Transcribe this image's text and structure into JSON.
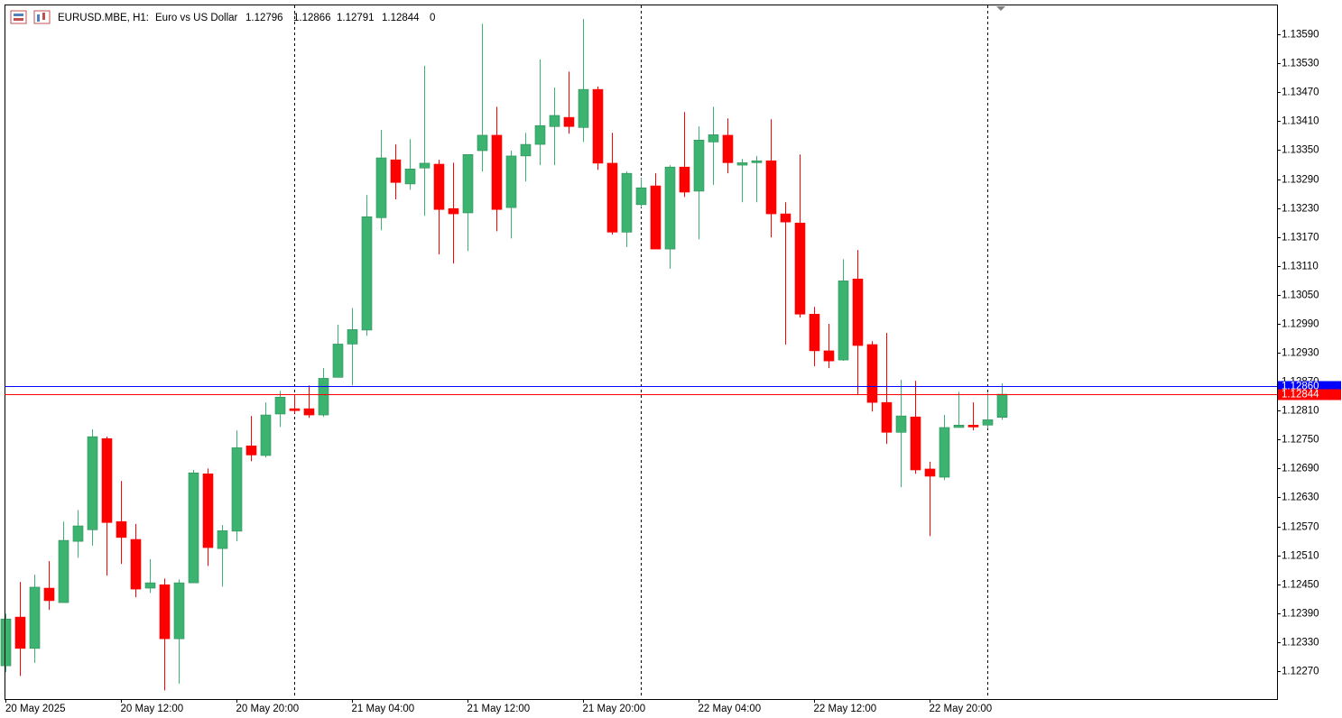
{
  "chart_data": {
    "type": "candlestick",
    "title": "EURUSD.MBE, H1:",
    "subtitle": "Euro vs US Dollar",
    "quote": [
      1.12796,
      1.12866,
      1.12791,
      1.12844
    ],
    "volume": 0,
    "categories": [
      "20 May 2025",
      null,
      null,
      null,
      null,
      null,
      null,
      null,
      "20 May 12:00",
      null,
      null,
      null,
      null,
      null,
      null,
      null,
      "20 May 20:00",
      null,
      null,
      null,
      null,
      null,
      null,
      null,
      "21 May 04:00",
      null,
      null,
      null,
      null,
      null,
      null,
      null,
      "21 May 12:00",
      null,
      null,
      null,
      null,
      null,
      null,
      null,
      "21 May 20:00",
      null,
      null,
      null,
      null,
      null,
      null,
      null,
      "22 May 04:00",
      null,
      null,
      null,
      null,
      null,
      null,
      null,
      "22 May 12:00",
      null,
      null,
      null,
      null,
      null,
      null,
      null,
      "22 May 20:00",
      null,
      null,
      null,
      null,
      null
    ],
    "open": [
      1.12281,
      1.12382,
      1.12317,
      1.12442,
      1.12412,
      1.12539,
      1.12563,
      1.12752,
      1.1258,
      1.12543,
      1.12442,
      1.12449,
      1.12337,
      1.12453,
      1.12679,
      1.12524,
      1.1256,
      1.12737,
      1.12717,
      1.12803,
      1.12814,
      1.12814,
      1.12801,
      1.12879,
      1.12948,
      1.12977,
      1.1321,
      1.1333,
      1.1328,
      1.13313,
      1.13321,
      1.13229,
      1.1322,
      1.13349,
      1.13381,
      1.13231,
      1.13338,
      1.13362,
      1.13399,
      1.13418,
      1.13397,
      1.13476,
      1.13323,
      1.1318,
      1.13237,
      1.13276,
      1.13145,
      1.13315,
      1.13265,
      1.13367,
      1.13381,
      1.13319,
      1.13324,
      1.13328,
      1.13218,
      1.13199,
      1.1301,
      1.12934,
      1.12915,
      1.13083,
      1.12947,
      1.12827,
      1.12765,
      1.12797,
      1.12689,
      1.12672,
      1.12775,
      1.1278,
      1.1278,
      1.12796
    ],
    "high": [
      1.12389,
      1.12455,
      1.1247,
      1.12498,
      1.1258,
      1.12604,
      1.12771,
      1.12756,
      1.12664,
      1.12575,
      1.12502,
      1.12462,
      1.1246,
      1.12687,
      1.1269,
      1.12573,
      1.12769,
      1.12799,
      1.12827,
      1.12851,
      1.12844,
      1.12862,
      1.12898,
      1.12988,
      1.13023,
      1.13257,
      1.13392,
      1.13362,
      1.13373,
      1.13525,
      1.1333,
      1.13324,
      1.13341,
      1.13612,
      1.1344,
      1.13349,
      1.13386,
      1.13538,
      1.1348,
      1.13513,
      1.13622,
      1.13482,
      1.13386,
      1.13306,
      1.13293,
      1.13302,
      1.13319,
      1.13429,
      1.13399,
      1.1344,
      1.13416,
      1.13332,
      1.13338,
      1.13414,
      1.13242,
      1.13341,
      1.13025,
      1.1299,
      1.13124,
      1.13143,
      1.12954,
      1.12971,
      1.12874,
      1.12872,
      1.12704,
      1.12801,
      1.12849,
      1.12827,
      1.12846,
      1.12866
    ],
    "low": [
      1.12268,
      1.1226,
      1.12287,
      1.12397,
      1.12412,
      1.12505,
      1.1253,
      1.12468,
      1.12492,
      1.12423,
      1.12432,
      1.1223,
      1.12244,
      1.12453,
      1.12488,
      1.12445,
      1.12539,
      1.12705,
      1.12713,
      1.12776,
      1.12804,
      1.12795,
      1.12797,
      1.12879,
      1.12862,
      1.12965,
      1.13184,
      1.13248,
      1.13268,
      1.13214,
      1.13134,
      1.13115,
      1.13141,
      1.13306,
      1.13182,
      1.13167,
      1.13285,
      1.13319,
      1.13319,
      1.13384,
      1.13367,
      1.13309,
      1.13175,
      1.13149,
      1.13231,
      1.13145,
      1.13104,
      1.13253,
      1.13165,
      1.13278,
      1.13302,
      1.13242,
      1.13242,
      1.13169,
      1.12947,
      1.13003,
      1.12902,
      1.12898,
      1.12913,
      1.12844,
      1.12808,
      1.12741,
      1.12651,
      1.12679,
      1.1255,
      1.12666,
      1.12775,
      1.12769,
      1.12773,
      1.12791
    ],
    "close": [
      1.12378,
      1.12317,
      1.12444,
      1.12416,
      1.12541,
      1.12571,
      1.12756,
      1.12578,
      1.12547,
      1.1244,
      1.12453,
      1.12337,
      1.12453,
      1.12681,
      1.12526,
      1.12561,
      1.12733,
      1.12718,
      1.12801,
      1.12838,
      1.1281,
      1.12801,
      1.12877,
      1.12948,
      1.12978,
      1.13212,
      1.13334,
      1.13283,
      1.13311,
      1.13323,
      1.13227,
      1.13218,
      1.13341,
      1.13381,
      1.13227,
      1.13338,
      1.13362,
      1.13401,
      1.13422,
      1.13399,
      1.13476,
      1.13323,
      1.1318,
      1.13302,
      1.13272,
      1.13145,
      1.13315,
      1.13263,
      1.13371,
      1.13382,
      1.13324,
      1.13324,
      1.13328,
      1.13218,
      1.13201,
      1.1301,
      1.12934,
      1.12913,
      1.13079,
      1.12945,
      1.12827,
      1.12765,
      1.12799,
      1.12687,
      1.12674,
      1.12775,
      1.1278,
      1.12776,
      1.12791,
      1.12844
    ],
    "up_color": "#3cb371",
    "down_color": "#ff0000",
    "bid": 1.12844,
    "bid_color": "#ff0000",
    "ask": {
      "value": 1.1286,
      "label": "1.12860"
    },
    "ask_color": "#0000ff",
    "ylim": [
      1.12212,
      1.13652
    ],
    "yticks": [
      {
        "value": 1.1227,
        "label": "1.12270"
      },
      {
        "value": 1.1233,
        "label": "1.12330"
      },
      {
        "value": 1.1239,
        "label": "1.12390"
      },
      {
        "value": 1.1245,
        "label": "1.12450"
      },
      {
        "value": 1.1251,
        "label": "1.12510"
      },
      {
        "value": 1.1257,
        "label": "1.12570"
      },
      {
        "value": 1.1263,
        "label": "1.12630"
      },
      {
        "value": 1.1269,
        "label": "1.12690"
      },
      {
        "value": 1.1275,
        "label": "1.12750"
      },
      {
        "value": 1.1281,
        "label": "1.12810"
      },
      {
        "value": 1.1287,
        "label": "1.12870"
      },
      {
        "value": 1.1293,
        "label": "1.12930"
      },
      {
        "value": 1.1299,
        "label": "1.12990"
      },
      {
        "value": 1.1305,
        "label": "1.13050"
      },
      {
        "value": 1.1311,
        "label": "1.13110"
      },
      {
        "value": 1.1317,
        "label": "1.13170"
      },
      {
        "value": 1.1323,
        "label": "1.13230"
      },
      {
        "value": 1.1329,
        "label": "1.13290"
      },
      {
        "value": 1.1335,
        "label": "1.13350"
      },
      {
        "value": 1.1341,
        "label": "1.13410"
      },
      {
        "value": 1.1347,
        "label": "1.13470"
      },
      {
        "value": 1.1353,
        "label": "1.13530"
      },
      {
        "value": 1.1359,
        "label": "1.13590"
      }
    ],
    "grid": false
  }
}
